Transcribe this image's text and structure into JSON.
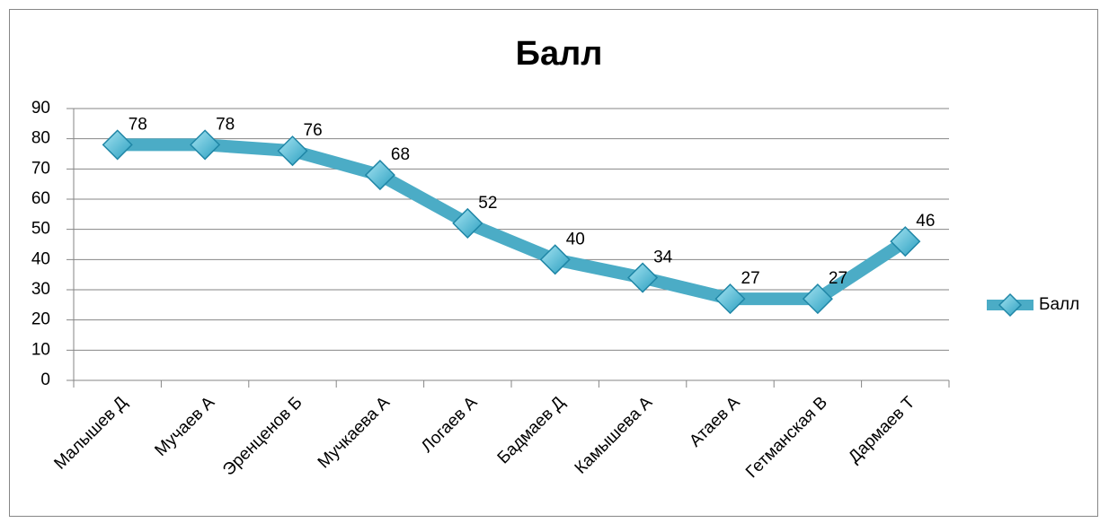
{
  "chart_data": {
    "type": "line",
    "title": "Балл",
    "categories": [
      "Малышев Д",
      "Мучаев А",
      "Эренценов Б",
      "Мучкаева А",
      "Логаев А",
      "Бадмаев Д",
      "Камышева А",
      "Атаев А",
      "Гетманская В",
      "Дармаев Т"
    ],
    "series": [
      {
        "name": "Балл",
        "color": "#4bacc6",
        "values": [
          78,
          78,
          76,
          68,
          52,
          40,
          34,
          27,
          27,
          46
        ]
      }
    ],
    "ylim": [
      0,
      90
    ],
    "yticks": [
      0,
      10,
      20,
      30,
      40,
      50,
      60,
      70,
      80,
      90
    ],
    "grid": true,
    "legend": "right"
  }
}
